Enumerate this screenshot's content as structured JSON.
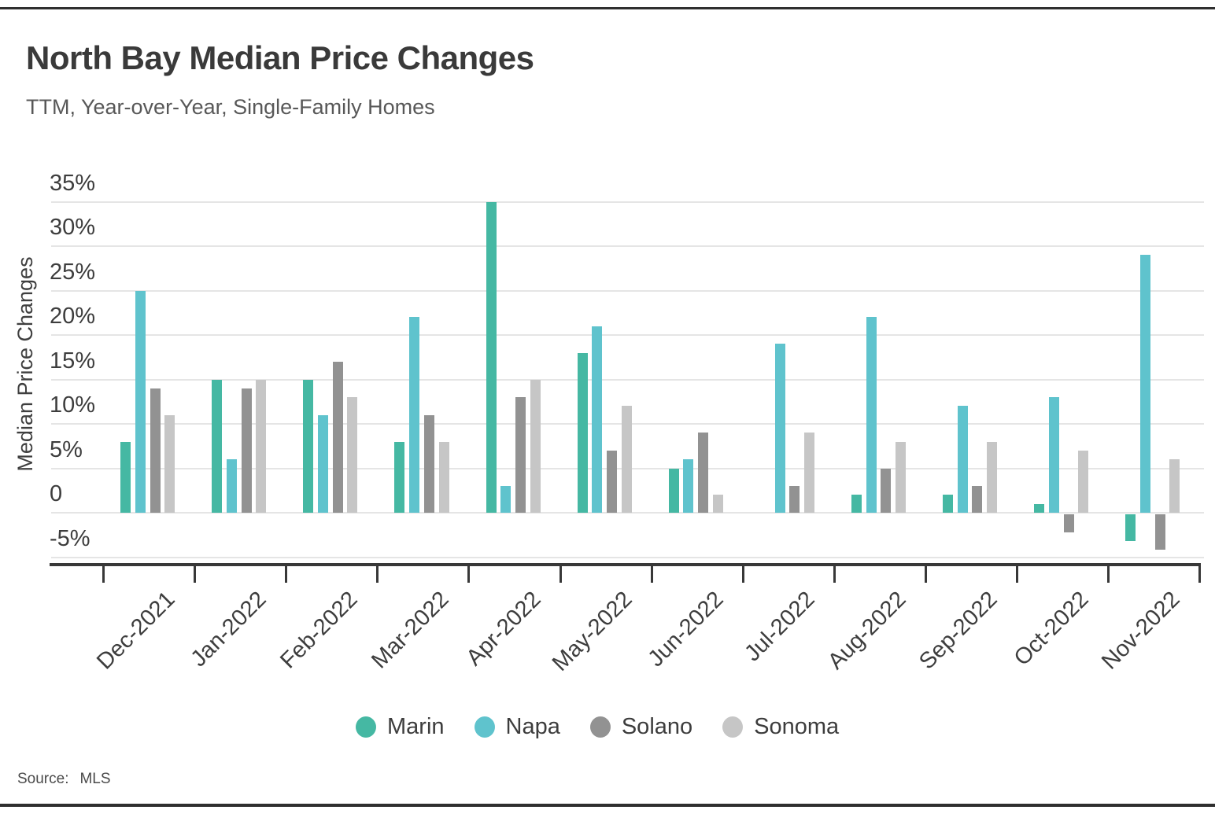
{
  "page": {
    "title": "North Bay Median Price Changes",
    "subtitle": "TTM, Year-over-Year, Single-Family Homes",
    "source_prefix": "Source:",
    "source": "MLS"
  },
  "chart_data": {
    "type": "bar",
    "title": "North Bay Median Price Changes",
    "subtitle": "TTM, Year-over-Year, Single-Family Homes",
    "xlabel": "",
    "ylabel": "Median Price Changes",
    "ylim": [
      -5,
      35
    ],
    "yticks": [
      35,
      30,
      25,
      20,
      15,
      10,
      5,
      0,
      -5
    ],
    "ytick_suffix": "%",
    "grid": true,
    "legend_position": "bottom",
    "source": "MLS",
    "categories": [
      "Dec-2021",
      "Jan-2022",
      "Feb-2022",
      "Mar-2022",
      "Apr-2022",
      "May-2022",
      "Jun-2022",
      "Jul-2022",
      "Aug-2022",
      "Sep-2022",
      "Oct-2022",
      "Nov-2022"
    ],
    "series": [
      {
        "name": "Marin",
        "color": "#45b8a3",
        "values": [
          8,
          15,
          15,
          8,
          35,
          18,
          5,
          0,
          2,
          2,
          1,
          -3
        ]
      },
      {
        "name": "Napa",
        "color": "#5fc3cd",
        "values": [
          25,
          6,
          11,
          22,
          3,
          21,
          6,
          19,
          22,
          12,
          13,
          29
        ]
      },
      {
        "name": "Solano",
        "color": "#929292",
        "values": [
          14,
          14,
          17,
          11,
          13,
          7,
          9,
          3,
          5,
          3,
          -2,
          -4
        ]
      },
      {
        "name": "Sonoma",
        "color": "#c6c6c6",
        "values": [
          11,
          15,
          13,
          8,
          15,
          12,
          2,
          9,
          8,
          8,
          7,
          6
        ]
      }
    ]
  }
}
